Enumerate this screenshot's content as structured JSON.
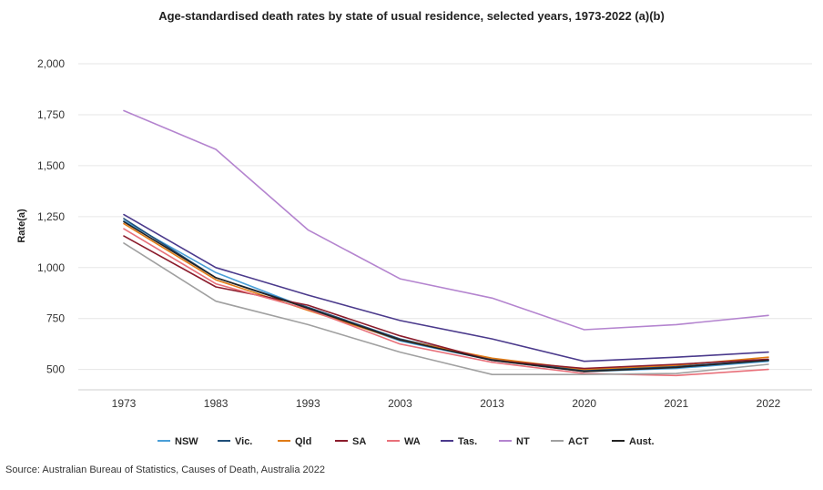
{
  "chart_data": {
    "type": "line",
    "title": "Age-standardised death rates by state of usual residence, selected years, 1973-2022 (a)(b)",
    "ylabel": "Rate(a)",
    "xlabel": "",
    "categories": [
      "1973",
      "1983",
      "1993",
      "2003",
      "2013",
      "2020",
      "2021",
      "2022"
    ],
    "ylim": [
      400,
      2000
    ],
    "yticks": [
      500,
      750,
      1000,
      1250,
      1500,
      1750,
      2000
    ],
    "ytick_labels": [
      "500",
      "750",
      "1,000",
      "1,250",
      "1,500",
      "1,750",
      "2,000"
    ],
    "grid": true,
    "legend_position": "bottom",
    "series": [
      {
        "name": "NSW",
        "color": "#4a9fd8",
        "values": [
          1230,
          975,
          800,
          640,
          545,
          490,
          505,
          540
        ]
      },
      {
        "name": "Vic.",
        "color": "#1f4e79",
        "values": [
          1240,
          950,
          805,
          650,
          550,
          495,
          515,
          545
        ]
      },
      {
        "name": "Qld",
        "color": "#e07b16",
        "values": [
          1215,
          940,
          790,
          645,
          555,
          500,
          520,
          560
        ]
      },
      {
        "name": "SA",
        "color": "#8b1c2c",
        "values": [
          1155,
          905,
          815,
          665,
          545,
          505,
          525,
          550
        ]
      },
      {
        "name": "WA",
        "color": "#e8707a",
        "values": [
          1190,
          920,
          795,
          625,
          535,
          480,
          470,
          500
        ]
      },
      {
        "name": "Tas.",
        "color": "#4b3a8c",
        "values": [
          1260,
          1000,
          865,
          740,
          650,
          540,
          560,
          585
        ]
      },
      {
        "name": "NT",
        "color": "#b484cf",
        "values": [
          1770,
          1580,
          1185,
          945,
          850,
          695,
          720,
          765
        ]
      },
      {
        "name": "ACT",
        "color": "#a0a0a0",
        "values": [
          1120,
          835,
          720,
          585,
          475,
          475,
          480,
          525
        ]
      },
      {
        "name": "Aust.",
        "color": "#222222",
        "values": [
          1225,
          950,
          800,
          645,
          545,
          490,
          510,
          545
        ]
      }
    ]
  },
  "source_note": "Source: Australian Bureau of Statistics, Causes of Death, Australia 2022"
}
